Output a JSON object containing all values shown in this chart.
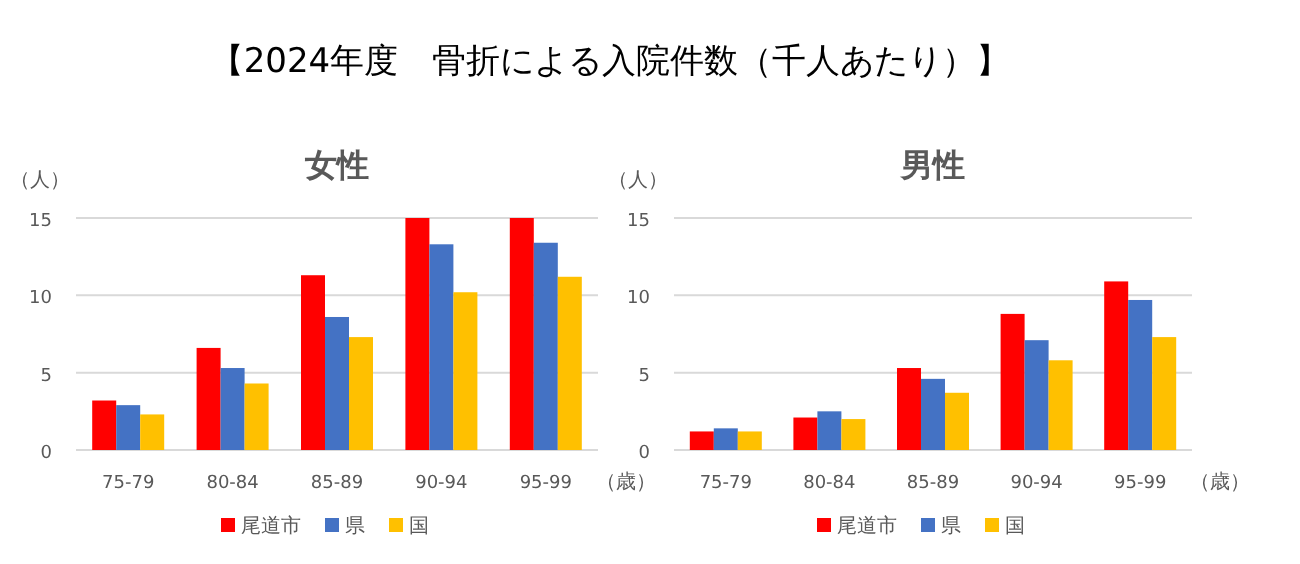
{
  "chart_data": [
    {
      "type": "bar",
      "title": "女性",
      "ylabel": "（人）",
      "xlabel": "（歳）",
      "annotations": [
        "【2024年度　骨折による入院件数（千人あたり）】"
      ],
      "categories": [
        "75-79",
        "80-84",
        "85-89",
        "90-94",
        "95-99"
      ],
      "series": [
        {
          "name": "尾道市",
          "color": "#ff0000",
          "values": [
            3.2,
            6.6,
            11.3,
            15,
            15
          ]
        },
        {
          "name": "県",
          "color": "#4472c4",
          "values": [
            2.9,
            5.3,
            8.6,
            13.3,
            13.4
          ]
        },
        {
          "name": "国",
          "color": "#ffc000",
          "values": [
            2.3,
            4.3,
            7.3,
            10.2,
            11.2
          ]
        }
      ],
      "ylim": [
        0,
        15
      ],
      "yticks": [
        0,
        5,
        10,
        15
      ],
      "grid": "y",
      "legend": "bottom"
    },
    {
      "type": "bar",
      "title": "男性",
      "ylabel": "（人）",
      "xlabel": "（歳）",
      "categories": [
        "75-79",
        "80-84",
        "85-89",
        "90-94",
        "95-99"
      ],
      "series": [
        {
          "name": "尾道市",
          "color": "#ff0000",
          "values": [
            1.2,
            2.1,
            5.3,
            8.8,
            10.9
          ]
        },
        {
          "name": "県",
          "color": "#4472c4",
          "values": [
            1.4,
            2.5,
            4.6,
            7.1,
            9.7
          ]
        },
        {
          "name": "国",
          "color": "#ffc000",
          "values": [
            1.2,
            2.0,
            3.7,
            5.8,
            7.3
          ]
        }
      ],
      "ylim": [
        0,
        15
      ],
      "yticks": [
        0,
        5,
        10,
        15
      ],
      "grid": "y",
      "legend": "bottom"
    }
  ]
}
